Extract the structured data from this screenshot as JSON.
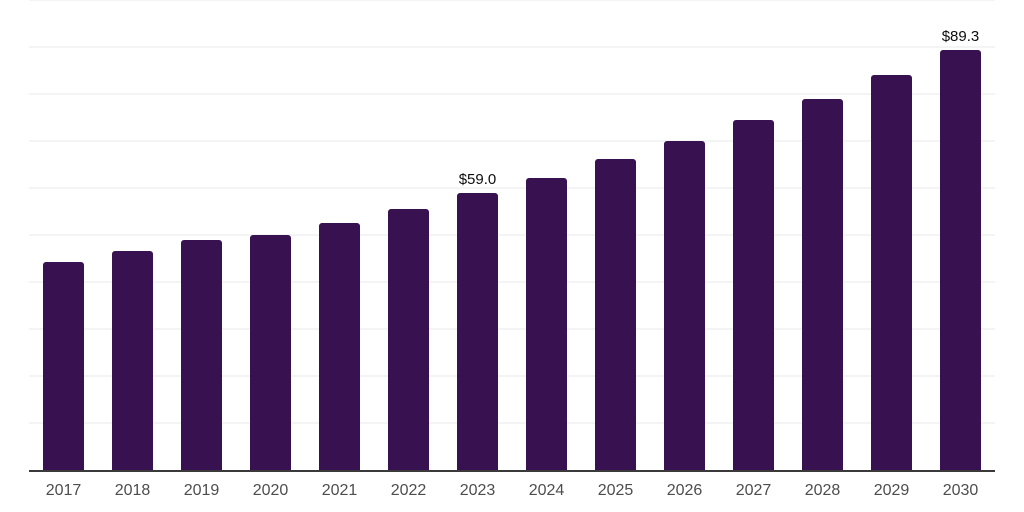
{
  "chart_data": {
    "type": "bar",
    "title": "",
    "xlabel": "",
    "ylabel": "",
    "categories": [
      "2017",
      "2018",
      "2019",
      "2020",
      "2021",
      "2022",
      "2023",
      "2024",
      "2025",
      "2026",
      "2027",
      "2028",
      "2029",
      "2030"
    ],
    "values": [
      44.2,
      46.6,
      48.9,
      50.0,
      52.6,
      55.6,
      59.0,
      62.2,
      66.1,
      70.0,
      74.5,
      79.0,
      84.0,
      89.3
    ],
    "value_labels": [
      "",
      "",
      "",
      "",
      "",
      "",
      "$59.0",
      "",
      "",
      "",
      "",
      "",
      "",
      "$89.3"
    ],
    "ylim": [
      0,
      100
    ],
    "gridline_step": 10,
    "grid": true,
    "legend": "none",
    "colors": {
      "bar": "#371150",
      "gridline": "#f4f4f4",
      "axis": "#3a3a3a",
      "x_tick_label": "#4d4d4d",
      "value_label": "#0d0d0d",
      "background": "#ffffff"
    }
  }
}
